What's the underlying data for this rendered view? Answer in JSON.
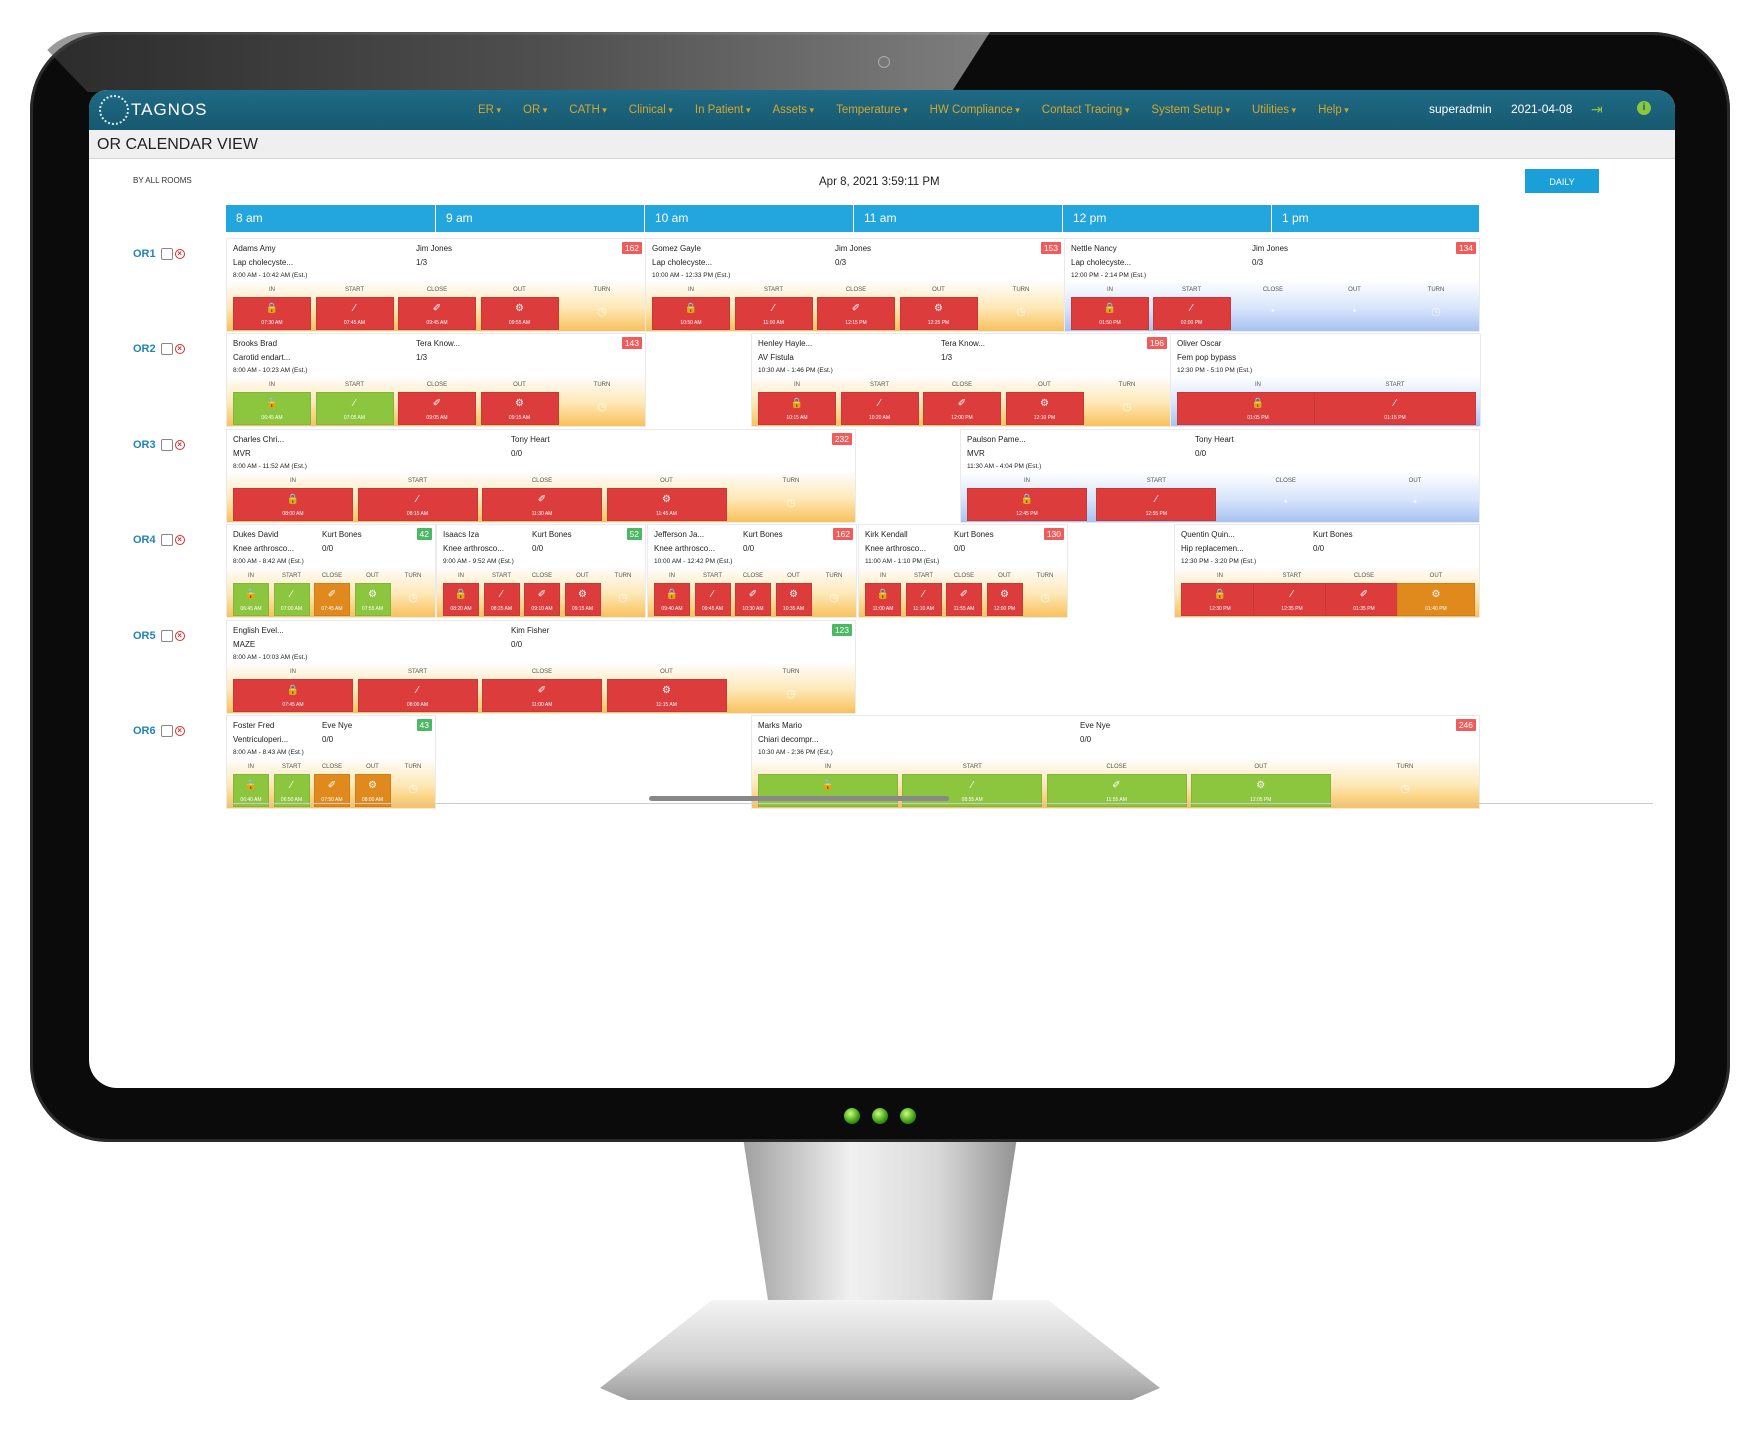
{
  "nav": {
    "logo": "TAGNOS",
    "menu": [
      "ER",
      "OR",
      "CATH",
      "Clinical",
      "In Patient",
      "Assets",
      "Temperature",
      "HW Compliance",
      "Contact Tracing",
      "System Setup",
      "Utilities",
      "Help"
    ],
    "user": "superadmin",
    "date": "2021-04-08"
  },
  "page": {
    "title": "OR CALENDAR VIEW",
    "subnav": "BY ALL ROOMS",
    "clock": "Apr 8, 2021 3:59:11 PM",
    "view_button": "DAILY"
  },
  "hours": [
    "8 am",
    "9 am",
    "10 am",
    "11 am",
    "12 pm",
    "1 pm"
  ],
  "rooms": [
    "OR1",
    "OR2",
    "OR3",
    "OR4",
    "OR5",
    "OR6"
  ],
  "stage_labels": [
    "IN",
    "START",
    "CLOSE",
    "OUT",
    "TURN"
  ],
  "colors": {
    "red": "#dc3c3c",
    "green": "#8cc63f",
    "orange": "#e08a1e",
    "badge_red": "#ee5c5c",
    "badge_green": "#4cb864"
  },
  "cases": [
    {
      "patient": "Adams Amy",
      "procedure": "Lap cholecyste...",
      "time": "8:00 AM - 10:42 AM (Est.)",
      "surgeon": "Jim Jones",
      "count": "1/3",
      "num": "162",
      "badge": "red",
      "stages": [
        {
          "t": "07:30 AM",
          "c": "red"
        },
        {
          "t": "07:45 AM",
          "c": "red"
        },
        {
          "t": "09:45 AM",
          "c": "red"
        },
        {
          "t": "09:55 AM",
          "c": "red"
        }
      ]
    },
    {
      "patient": "Gomez Gayle",
      "procedure": "Lap cholecyste...",
      "time": "10:00 AM - 12:33 PM (Est.)",
      "surgeon": "Jim Jones",
      "count": "0/3",
      "num": "153",
      "badge": "red",
      "stages": [
        {
          "t": "10:50 AM",
          "c": "red"
        },
        {
          "t": "11:00 AM",
          "c": "red"
        },
        {
          "t": "12:15 PM",
          "c": "red"
        },
        {
          "t": "12:25 PM",
          "c": "red"
        }
      ]
    },
    {
      "patient": "Nettle Nancy",
      "procedure": "Lap cholecyste...",
      "time": "12:00 PM - 2:14 PM (Est.)",
      "surgeon": "Jim Jones",
      "count": "0/3",
      "num": "134",
      "badge": "red",
      "stages": [
        {
          "t": "01:50 PM",
          "c": "red"
        },
        {
          "t": "02:00 PM",
          "c": "red"
        }
      ]
    },
    {
      "patient": "Brooks Brad",
      "procedure": "Carotid endart...",
      "time": "8:00 AM - 10:23 AM (Est.)",
      "surgeon": "Tera Know...",
      "count": "1/3",
      "num": "143",
      "badge": "red",
      "stages": [
        {
          "t": "06:45 AM",
          "c": "green"
        },
        {
          "t": "07:05 AM",
          "c": "green"
        },
        {
          "t": "09:05 AM",
          "c": "red"
        },
        {
          "t": "09:15 AM",
          "c": "red"
        }
      ]
    },
    {
      "patient": "Henley Hayle...",
      "procedure": "AV Fistula",
      "time": "10:30 AM - 1:46 PM (Est.)",
      "surgeon": "Tera Know...",
      "count": "1/3",
      "num": "196",
      "badge": "red",
      "stages": [
        {
          "t": "10:15 AM",
          "c": "red"
        },
        {
          "t": "10:20 AM",
          "c": "red"
        },
        {
          "t": "12:00 PM",
          "c": "red"
        },
        {
          "t": "12:10 PM",
          "c": "red"
        }
      ]
    },
    {
      "patient": "Oliver Oscar",
      "procedure": "Fem pop bypass",
      "time": "12:30 PM - 5:10 PM (Est.)",
      "surgeon": "",
      "count": "",
      "num": "",
      "badge": "",
      "stages": [
        {
          "t": "01:05 PM",
          "c": "red"
        },
        {
          "t": "01:15 PM",
          "c": "red"
        }
      ]
    },
    {
      "patient": "Charles Chri...",
      "procedure": "MVR",
      "time": "8:00 AM - 11:52 AM (Est.)",
      "surgeon": "Tony Heart",
      "count": "0/0",
      "num": "232",
      "badge": "red",
      "stages": [
        {
          "t": "08:00 AM",
          "c": "red"
        },
        {
          "t": "08:15 AM",
          "c": "red"
        },
        {
          "t": "11:30 AM",
          "c": "red"
        },
        {
          "t": "11:45 AM",
          "c": "red"
        }
      ]
    },
    {
      "patient": "Paulson Pame...",
      "procedure": "MVR",
      "time": "11:30 AM - 4:04 PM (Est.)",
      "surgeon": "Tony Heart",
      "count": "0/0",
      "num": "",
      "badge": "",
      "stages": [
        {
          "t": "12:45 PM",
          "c": "red"
        },
        {
          "t": "12:55 PM",
          "c": "red"
        }
      ]
    },
    {
      "patient": "Dukes David",
      "procedure": "Knee arthrosco...",
      "time": "8:00 AM - 8:42 AM (Est.)",
      "surgeon": "Kurt Bones",
      "count": "0/0",
      "num": "42",
      "badge": "green",
      "stages": [
        {
          "t": "06:45 AM",
          "c": "green"
        },
        {
          "t": "07:00 AM",
          "c": "green"
        },
        {
          "t": "07:45 AM",
          "c": "orange"
        },
        {
          "t": "07:55 AM",
          "c": "green"
        }
      ]
    },
    {
      "patient": "Isaacs Iza",
      "procedure": "Knee arthrosco...",
      "time": "9:00 AM - 9:52 AM (Est.)",
      "surgeon": "Kurt Bones",
      "count": "0/0",
      "num": "52",
      "badge": "green",
      "stages": [
        {
          "t": "08:20 AM",
          "c": "red"
        },
        {
          "t": "08:25 AM",
          "c": "red"
        },
        {
          "t": "09:10 AM",
          "c": "red"
        },
        {
          "t": "09:15 AM",
          "c": "red"
        }
      ]
    },
    {
      "patient": "Jefferson Ja...",
      "procedure": "Knee arthrosco...",
      "time": "10:00 AM - 12:42 PM (Est.)",
      "surgeon": "Kurt Bones",
      "count": "0/0",
      "num": "162",
      "badge": "red",
      "stages": [
        {
          "t": "09:40 AM",
          "c": "red"
        },
        {
          "t": "09:45 AM",
          "c": "red"
        },
        {
          "t": "10:30 AM",
          "c": "red"
        },
        {
          "t": "10:35 AM",
          "c": "red"
        }
      ]
    },
    {
      "patient": "Kirk Kendall",
      "procedure": "Knee arthrosco...",
      "time": "11:00 AM - 1:10 PM (Est.)",
      "surgeon": "Kurt Bones",
      "count": "0/0",
      "num": "130",
      "badge": "red",
      "stages": [
        {
          "t": "11:00 AM",
          "c": "red"
        },
        {
          "t": "11:10 AM",
          "c": "red"
        },
        {
          "t": "11:55 AM",
          "c": "red"
        },
        {
          "t": "12:00 PM",
          "c": "red"
        }
      ]
    },
    {
      "patient": "Quentin Quin...",
      "procedure": "Hip replacemen...",
      "time": "12:30 PM - 3:20 PM (Est.)",
      "surgeon": "Kurt Bones",
      "count": "0/0",
      "num": "",
      "badge": "",
      "stages": [
        {
          "t": "12:30 PM",
          "c": "red"
        },
        {
          "t": "12:35 PM",
          "c": "red"
        },
        {
          "t": "01:35 PM",
          "c": "red"
        },
        {
          "t": "01:40 PM",
          "c": "orange"
        }
      ]
    },
    {
      "patient": "English Evel...",
      "procedure": "MAZE",
      "time": "8:00 AM - 10:03 AM (Est.)",
      "surgeon": "Kim Fisher",
      "count": "0/0",
      "num": "123",
      "badge": "green",
      "stages": [
        {
          "t": "07:45 AM",
          "c": "red"
        },
        {
          "t": "08:00 AM",
          "c": "red"
        },
        {
          "t": "11:00 AM",
          "c": "red"
        },
        {
          "t": "11:15 AM",
          "c": "red"
        }
      ]
    },
    {
      "patient": "Foster Fred",
      "procedure": "Ventriculoperi...",
      "time": "8:00 AM - 8:43 AM (Est.)",
      "surgeon": "Eve Nye",
      "count": "0/0",
      "num": "43",
      "badge": "green",
      "stages": [
        {
          "t": "06:40 AM",
          "c": "green"
        },
        {
          "t": "06:50 AM",
          "c": "green"
        },
        {
          "t": "07:50 AM",
          "c": "orange"
        },
        {
          "t": "08:00 AM",
          "c": "orange"
        }
      ]
    },
    {
      "patient": "Marks Mario",
      "procedure": "Chiari decompr...",
      "time": "10:30 AM - 2:36 PM (Est.)",
      "surgeon": "Eve Nye",
      "count": "0/0",
      "num": "246",
      "badge": "red",
      "stages": [
        {
          "t": "08:45 AM",
          "c": "green"
        },
        {
          "t": "08:55 AM",
          "c": "green"
        },
        {
          "t": "11:55 AM",
          "c": "green"
        },
        {
          "t": "12:05 PM",
          "c": "green"
        }
      ]
    }
  ]
}
